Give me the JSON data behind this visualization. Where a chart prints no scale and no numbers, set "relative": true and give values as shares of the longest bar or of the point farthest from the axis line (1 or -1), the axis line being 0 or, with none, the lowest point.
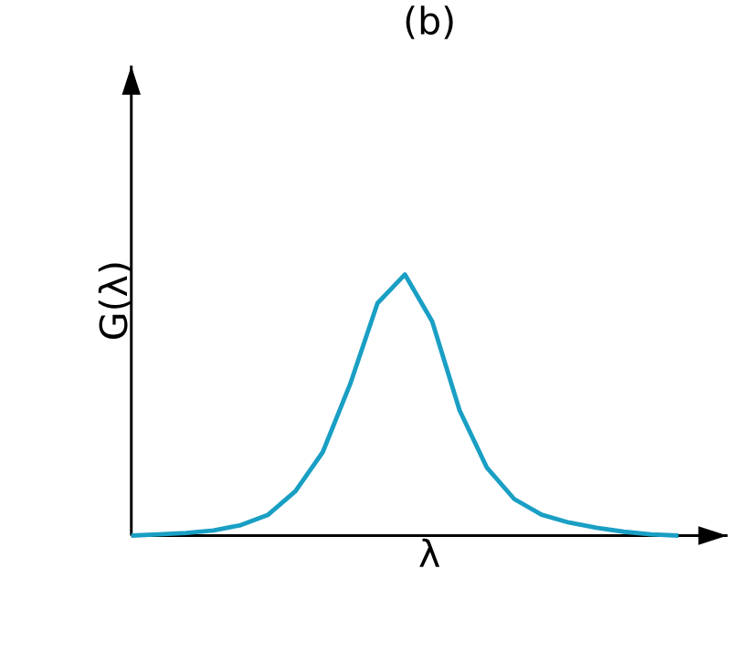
{
  "chart_data": {
    "type": "line",
    "title": "(b)",
    "xlabel": "λ",
    "ylabel": "G(λ)",
    "relative": true,
    "categories": [
      null,
      null,
      null,
      null,
      null,
      null,
      null,
      null,
      null,
      null,
      null,
      null,
      null,
      null,
      null,
      null,
      null,
      null,
      null,
      null,
      null
    ],
    "color": "#1a9fc4",
    "values": [
      0,
      0.005,
      0.01,
      0.02,
      0.04,
      0.08,
      0.17,
      0.32,
      0.58,
      0.89,
      1.0,
      0.82,
      0.48,
      0.26,
      0.14,
      0.08,
      0.05,
      0.03,
      0.015,
      0.005,
      0
    ]
  }
}
